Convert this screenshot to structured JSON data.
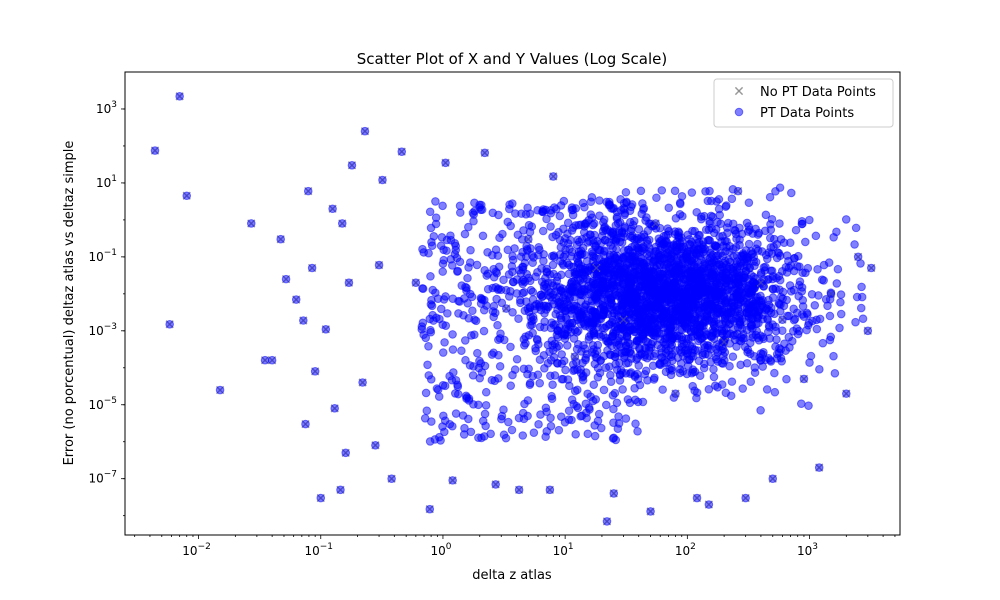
{
  "chart_data": {
    "type": "scatter",
    "title": "Scatter Plot of X and Y Values (Log Scale)",
    "xlabel": "delta z atlas",
    "ylabel": "Error (no porcentual) deltaz atlas vs deltaz simple",
    "xscale": "log",
    "yscale": "log",
    "xlim": [
      0.0025,
      5500
    ],
    "ylim": [
      3e-09,
      10000
    ],
    "grid": false,
    "legend_position": "top-right",
    "x_ticks": [
      {
        "value": 0.01,
        "base": "10",
        "exp": "−2"
      },
      {
        "value": 0.1,
        "base": "10",
        "exp": "−1"
      },
      {
        "value": 1,
        "base": "10",
        "exp": "0"
      },
      {
        "value": 10,
        "base": "10",
        "exp": "1"
      },
      {
        "value": 100,
        "base": "10",
        "exp": "2"
      },
      {
        "value": 1000,
        "base": "10",
        "exp": "3"
      }
    ],
    "y_ticks": [
      {
        "value": 1e-07,
        "base": "10",
        "exp": "−7"
      },
      {
        "value": 1e-05,
        "base": "10",
        "exp": "−5"
      },
      {
        "value": 0.001,
        "base": "10",
        "exp": "−3"
      },
      {
        "value": 0.1,
        "base": "10",
        "exp": "−1"
      },
      {
        "value": 10,
        "base": "10",
        "exp": "1"
      },
      {
        "value": 1000,
        "base": "10",
        "exp": "3"
      }
    ],
    "series": [
      {
        "name": "No PT Data Points",
        "marker": "x",
        "color": "#808080",
        "points": [
          [
            0.0044,
            75
          ],
          [
            0.0058,
            0.0015
          ],
          [
            0.007,
            2200
          ],
          [
            0.008,
            4.5
          ],
          [
            0.015,
            2.5e-05
          ],
          [
            0.027,
            0.8
          ],
          [
            0.035,
            0.00016
          ],
          [
            0.04,
            0.00016
          ],
          [
            0.047,
            0.3
          ],
          [
            0.052,
            0.025
          ],
          [
            0.063,
            0.007
          ],
          [
            0.072,
            0.0019
          ],
          [
            0.075,
            3e-06
          ],
          [
            0.079,
            6
          ],
          [
            0.085,
            0.05
          ],
          [
            0.09,
            8e-05
          ],
          [
            0.1,
            3e-08
          ],
          [
            0.11,
            0.0011
          ],
          [
            0.125,
            2
          ],
          [
            0.13,
            8e-06
          ],
          [
            0.145,
            5e-08
          ],
          [
            0.15,
            0.8
          ],
          [
            0.16,
            5e-07
          ],
          [
            0.17,
            0.02
          ],
          [
            0.18,
            30
          ],
          [
            0.22,
            4e-05
          ],
          [
            0.23,
            250
          ],
          [
            0.28,
            8e-07
          ],
          [
            0.3,
            0.06
          ],
          [
            0.32,
            12
          ],
          [
            0.38,
            1e-07
          ],
          [
            0.46,
            70
          ],
          [
            0.6,
            0.02
          ],
          [
            0.78,
            1.5e-08
          ],
          [
            1.05,
            35
          ],
          [
            1.2,
            9e-08
          ],
          [
            2.2,
            65
          ],
          [
            2.7,
            7e-08
          ],
          [
            3.3,
            0.004
          ],
          [
            4.2,
            5e-08
          ],
          [
            5.0,
            0.3
          ],
          [
            7.5,
            5e-08
          ],
          [
            8,
            15
          ],
          [
            12,
            0.0002
          ],
          [
            18,
            0.05
          ],
          [
            22,
            7e-09
          ],
          [
            25,
            4e-08
          ],
          [
            30,
            0.002
          ],
          [
            50,
            1.3e-08
          ],
          [
            55,
            0.8
          ],
          [
            80,
            2e-05
          ],
          [
            120,
            3e-08
          ],
          [
            150,
            2e-08
          ],
          [
            200,
            0.0005
          ],
          [
            260,
            6
          ],
          [
            300,
            3e-08
          ],
          [
            400,
            0.02
          ],
          [
            500,
            1e-07
          ],
          [
            600,
            0.002
          ],
          [
            900,
            5e-05
          ],
          [
            1200,
            2e-07
          ],
          [
            1500,
            0.01
          ],
          [
            2000,
            2e-05
          ],
          [
            2500,
            0.1
          ],
          [
            3000,
            0.001
          ],
          [
            3200,
            0.05
          ]
        ]
      },
      {
        "name": "PT Data Points",
        "marker": "o",
        "color": "#0000ff",
        "points": [
          [
            0.0044,
            75
          ],
          [
            0.0058,
            0.0015
          ],
          [
            0.007,
            2200
          ],
          [
            0.008,
            4.5
          ],
          [
            0.015,
            2.5e-05
          ],
          [
            0.027,
            0.8
          ],
          [
            0.035,
            0.00016
          ],
          [
            0.04,
            0.00016
          ],
          [
            0.047,
            0.3
          ],
          [
            0.052,
            0.025
          ],
          [
            0.063,
            0.007
          ],
          [
            0.072,
            0.0019
          ],
          [
            0.075,
            3e-06
          ],
          [
            0.079,
            6
          ],
          [
            0.085,
            0.05
          ],
          [
            0.09,
            8e-05
          ],
          [
            0.1,
            3e-08
          ],
          [
            0.11,
            0.0011
          ],
          [
            0.125,
            2
          ],
          [
            0.13,
            8e-06
          ],
          [
            0.145,
            5e-08
          ],
          [
            0.15,
            0.8
          ],
          [
            0.16,
            5e-07
          ],
          [
            0.17,
            0.02
          ],
          [
            0.18,
            30
          ],
          [
            0.22,
            4e-05
          ],
          [
            0.23,
            250
          ],
          [
            0.28,
            8e-07
          ],
          [
            0.3,
            0.06
          ],
          [
            0.32,
            12
          ],
          [
            0.38,
            1e-07
          ],
          [
            0.46,
            70
          ],
          [
            0.6,
            0.02
          ],
          [
            0.78,
            1.5e-08
          ],
          [
            1.05,
            35
          ],
          [
            1.2,
            9e-08
          ],
          [
            2.2,
            65
          ],
          [
            2.7,
            7e-08
          ],
          [
            3.3,
            0.004
          ],
          [
            4.2,
            5e-08
          ],
          [
            5.0,
            0.3
          ],
          [
            7.5,
            5e-08
          ],
          [
            8,
            15
          ],
          [
            12,
            0.0002
          ],
          [
            18,
            0.05
          ],
          [
            22,
            7e-09
          ],
          [
            25,
            4e-08
          ],
          [
            30,
            0.002
          ],
          [
            50,
            1.3e-08
          ],
          [
            55,
            0.8
          ],
          [
            80,
            2e-05
          ],
          [
            120,
            3e-08
          ],
          [
            150,
            2e-08
          ],
          [
            200,
            0.0005
          ],
          [
            260,
            6
          ],
          [
            300,
            3e-08
          ],
          [
            400,
            0.02
          ],
          [
            500,
            1e-07
          ],
          [
            600,
            0.002
          ],
          [
            900,
            5e-05
          ],
          [
            1200,
            2e-07
          ],
          [
            1500,
            0.01
          ],
          [
            2000,
            2e-05
          ],
          [
            2500,
            0.1
          ],
          [
            3000,
            0.001
          ],
          [
            3200,
            0.05
          ]
        ]
      }
    ]
  }
}
